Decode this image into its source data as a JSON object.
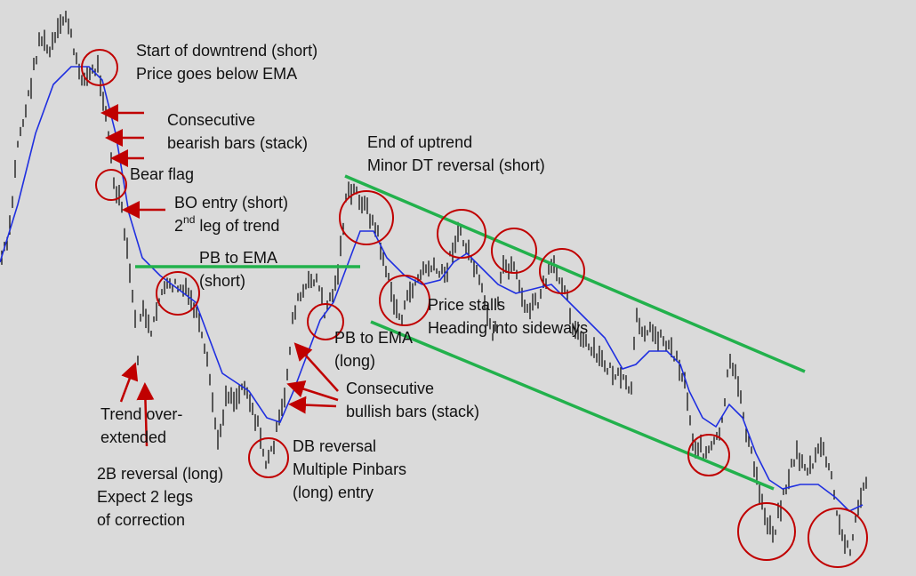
{
  "annotations": [
    {
      "lines": [
        "Start of downtrend (short)",
        "Price goes below EMA"
      ]
    },
    {
      "lines": [
        "Consecutive",
        "bearish bars (stack)"
      ]
    },
    {
      "lines": [
        "Bear flag"
      ]
    },
    {
      "lines": [
        "BO entry (short)"
      ],
      "sup_line": {
        "before": "2",
        "sup": "nd",
        "after": " leg of trend"
      }
    },
    {
      "lines": [
        "PB to EMA",
        "(short)"
      ]
    },
    {
      "lines": [
        "End of uptrend",
        "Minor DT reversal (short)"
      ]
    },
    {
      "lines": [
        "Price stalls",
        "Heading into sideways"
      ]
    },
    {
      "lines": [
        "PB to EMA",
        "(long)"
      ]
    },
    {
      "lines": [
        "Consecutive",
        "bullish bars (stack)"
      ]
    },
    {
      "lines": [
        "Trend over-",
        "extended"
      ]
    },
    {
      "lines": [
        "DB reversal",
        "Multiple Pinbars",
        "(long) entry"
      ]
    },
    {
      "lines": [
        "2B reversal (long)",
        "Expect 2 legs",
        "of correction"
      ]
    }
  ]
}
